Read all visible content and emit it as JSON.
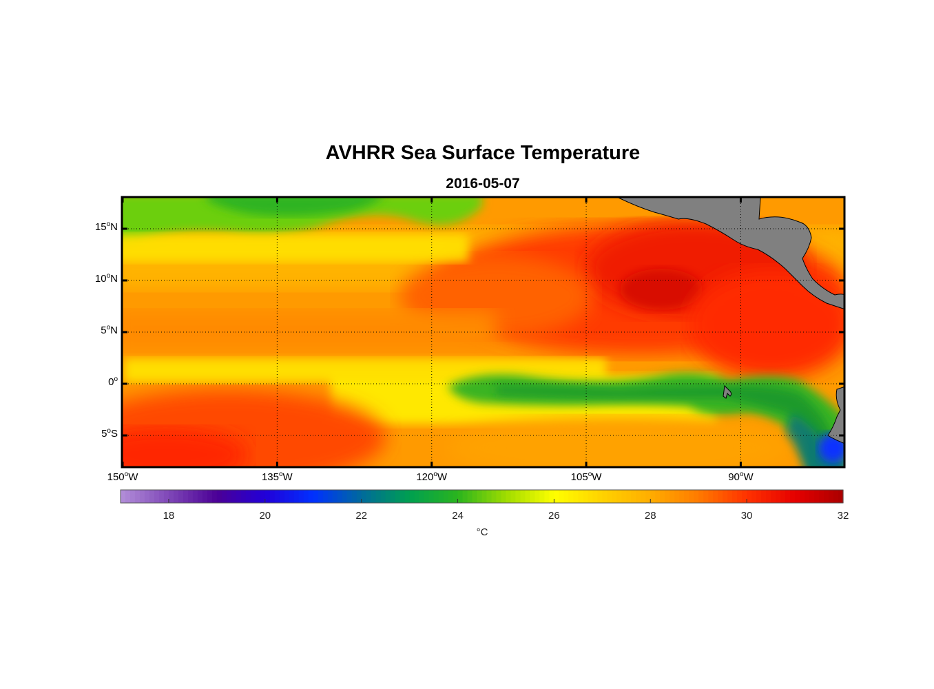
{
  "title": "AVHRR Sea Surface Temperature",
  "subtitle": "2016-05-07",
  "map": {
    "lon_range": [
      -150,
      -80
    ],
    "lat_range": [
      -8,
      18
    ],
    "lat_ticks": [
      {
        "value": 15,
        "num": "15",
        "hemi": "N"
      },
      {
        "value": 10,
        "num": "10",
        "hemi": "N"
      },
      {
        "value": 5,
        "num": "5",
        "hemi": "N"
      },
      {
        "value": 0,
        "num": "0",
        "hemi": ""
      },
      {
        "value": -5,
        "num": "5",
        "hemi": "S"
      }
    ],
    "lon_ticks": [
      {
        "value": -150,
        "num": "150",
        "hemi": "W"
      },
      {
        "value": -135,
        "num": "135",
        "hemi": "W"
      },
      {
        "value": -120,
        "num": "120",
        "hemi": "W"
      },
      {
        "value": -105,
        "num": "105",
        "hemi": "W"
      },
      {
        "value": -90,
        "num": "90",
        "hemi": "W"
      }
    ],
    "gridlines": true,
    "land_color": "#808080"
  },
  "colorbar": {
    "min": 17,
    "max": 32,
    "ticks": [
      18,
      20,
      22,
      24,
      26,
      28,
      30,
      32
    ],
    "unit": "°C",
    "colors": [
      {
        "t": 17,
        "c": "#b38fd9"
      },
      {
        "t": 19,
        "c": "#4b0096"
      },
      {
        "t": 20,
        "c": "#2200d8"
      },
      {
        "t": 21,
        "c": "#0030ff"
      },
      {
        "t": 22,
        "c": "#006a9c"
      },
      {
        "t": 23,
        "c": "#00a050"
      },
      {
        "t": 24,
        "c": "#2ab41e"
      },
      {
        "t": 25,
        "c": "#9fdc00"
      },
      {
        "t": 26,
        "c": "#ffff00"
      },
      {
        "t": 27,
        "c": "#ffd200"
      },
      {
        "t": 28,
        "c": "#ffad00"
      },
      {
        "t": 29,
        "c": "#ff7a00"
      },
      {
        "t": 30,
        "c": "#ff3200"
      },
      {
        "t": 31,
        "c": "#e60000"
      },
      {
        "t": 32,
        "c": "#aa0000"
      }
    ]
  }
}
